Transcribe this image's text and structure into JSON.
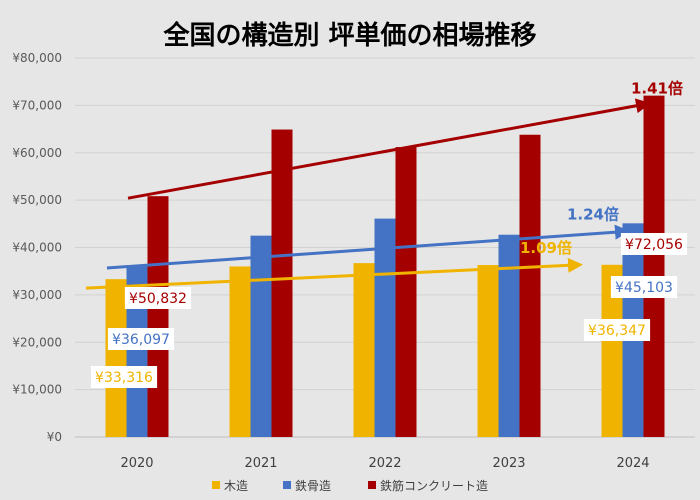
{
  "chart_data": {
    "type": "bar",
    "title": "全国の構造別 坪単価の相場推移",
    "categories": [
      "2020",
      "2021",
      "2022",
      "2023",
      "2024"
    ],
    "ylim": [
      0,
      80000
    ],
    "y_ticks": [
      "¥0",
      "¥10,000",
      "¥20,000",
      "¥30,000",
      "¥40,000",
      "¥50,000",
      "¥60,000",
      "¥70,000",
      "¥80,000"
    ],
    "grid": true,
    "legend_position": "bottom",
    "series": [
      {
        "name": "木造",
        "color": "#f0b400",
        "values": [
          33316,
          36000,
          36700,
          36300,
          36347
        ]
      },
      {
        "name": "鉄骨造",
        "color": "#4472c4",
        "values": [
          36097,
          42500,
          46100,
          42700,
          45103
        ]
      },
      {
        "name": "鉄筋コンクリート造",
        "color": "#a50000",
        "values": [
          50832,
          64900,
          61200,
          63800,
          72056
        ]
      }
    ],
    "data_labels": [
      {
        "series": 0,
        "category": "2020",
        "text": "¥33,316"
      },
      {
        "series": 1,
        "category": "2020",
        "text": "¥36,097"
      },
      {
        "series": 2,
        "category": "2020",
        "text": "¥50,832"
      },
      {
        "series": 0,
        "category": "2024",
        "text": "¥36,347"
      },
      {
        "series": 1,
        "category": "2024",
        "text": "¥45,103"
      },
      {
        "series": 2,
        "category": "2024",
        "text": "¥72,056"
      }
    ],
    "trend_arrows": [
      {
        "series": 0,
        "text": "1.09倍",
        "color": "#f0b400"
      },
      {
        "series": 1,
        "text": "1.24倍",
        "color": "#4472c4"
      },
      {
        "series": 2,
        "text": "1.41倍",
        "color": "#a50000"
      }
    ]
  }
}
